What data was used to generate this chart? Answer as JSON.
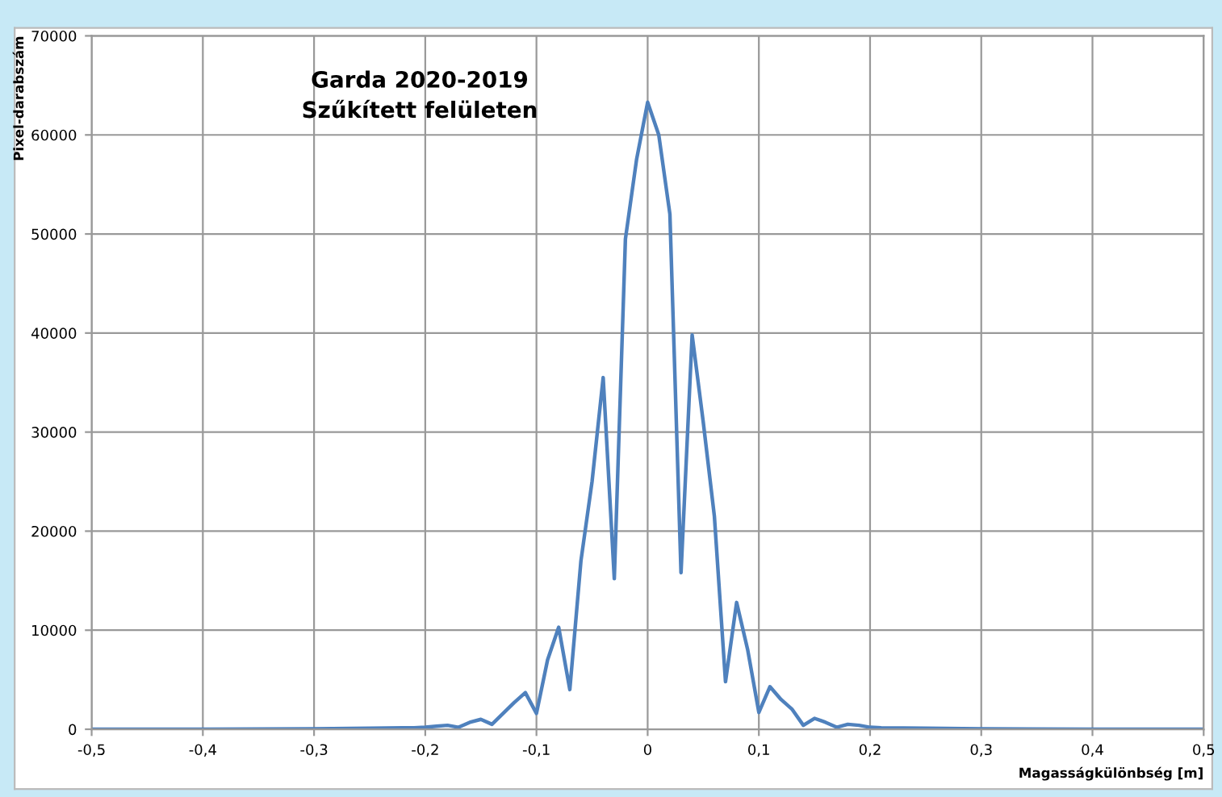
{
  "chart_data": {
    "type": "line",
    "title": "Garda 2020-2019\nSzűkített felületen",
    "xlabel": "Magasságkülönbség [m]",
    "ylabel": "Pixel-darabszám",
    "x": [
      -0.5,
      -0.4,
      -0.3,
      -0.25,
      -0.22,
      -0.21,
      -0.2,
      -0.19,
      -0.18,
      -0.17,
      -0.16,
      -0.15,
      -0.14,
      -0.13,
      -0.12,
      -0.11,
      -0.1,
      -0.09,
      -0.08,
      -0.07,
      -0.06,
      -0.05,
      -0.04,
      -0.03,
      -0.02,
      -0.01,
      0,
      0.01,
      0.02,
      0.03,
      0.04,
      0.05,
      0.06,
      0.07,
      0.08,
      0.09,
      0.1,
      0.11,
      0.12,
      0.13,
      0.14,
      0.15,
      0.16,
      0.17,
      0.18,
      0.19,
      0.2,
      0.21,
      0.25,
      0.3,
      0.4,
      0.5
    ],
    "series": [
      {
        "color": "#4f81bd",
        "values": [
          0,
          0,
          50,
          100,
          150,
          150,
          200,
          300,
          400,
          200,
          700,
          1000,
          500,
          1600,
          2700,
          3700,
          1600,
          7000,
          10300,
          4000,
          17000,
          25000,
          35500,
          15200,
          49500,
          57500,
          63300,
          60000,
          52000,
          15800,
          39800,
          31000,
          21500,
          4800,
          12800,
          8000,
          1700,
          4300,
          3000,
          2000,
          400,
          1100,
          700,
          200,
          500,
          400,
          200,
          150,
          100,
          50,
          0,
          0
        ]
      }
    ],
    "xlim": [
      -0.5,
      0.5
    ],
    "xticks": [
      {
        "value": -0.5,
        "label": "-0,5"
      },
      {
        "value": -0.4,
        "label": "-0,4"
      },
      {
        "value": -0.3,
        "label": "-0,3"
      },
      {
        "value": -0.2,
        "label": "-0,2"
      },
      {
        "value": -0.1,
        "label": "-0,1"
      },
      0,
      {
        "value": 0.1,
        "label": "0,1"
      },
      {
        "value": 0.2,
        "label": "0,2"
      },
      {
        "value": 0.3,
        "label": "0,3"
      },
      {
        "value": 0.4,
        "label": "0,4"
      },
      {
        "value": 0.5,
        "label": "0,5"
      }
    ],
    "ylim": [
      0,
      70000
    ],
    "yticks": [
      0,
      10000,
      20000,
      30000,
      40000,
      50000,
      60000,
      70000
    ],
    "grid": true,
    "marker": "none",
    "line_style": "solid",
    "legend": false
  }
}
